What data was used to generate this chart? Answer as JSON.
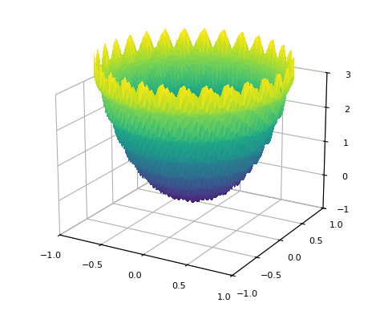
{
  "n_theta": 150,
  "n_r": 100,
  "r_max": 1.0,
  "xlim": [
    -1,
    1
  ],
  "ylim": [
    -1,
    1
  ],
  "zlim": [
    -1,
    3
  ],
  "zticks": [
    -1,
    0,
    1,
    2,
    3
  ],
  "xticks": [
    -1,
    -0.5,
    0,
    0.5,
    1
  ],
  "yticks": [
    -1,
    -0.5,
    0,
    0.5,
    1
  ],
  "colormap": "viridis",
  "elev": 20,
  "azim": -60,
  "background_color": "white",
  "defocus_coeff": 2.0,
  "spherical_coeff": 1.5,
  "ripple_amplitude": 0.3,
  "ripple_frequency": 30
}
